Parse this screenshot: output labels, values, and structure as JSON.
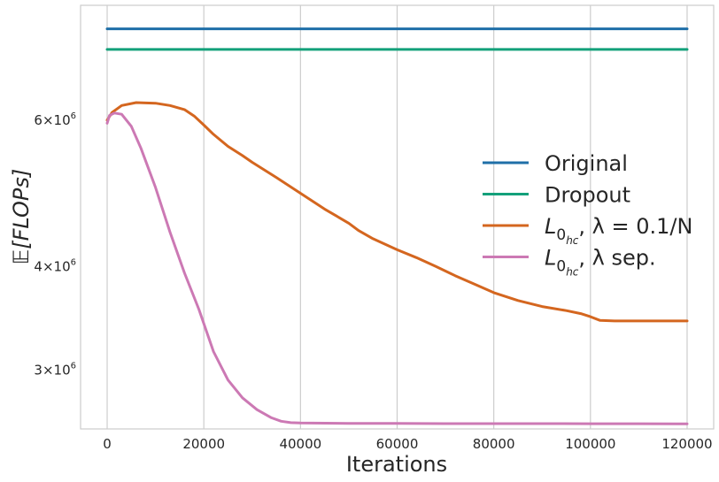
{
  "chart_data": {
    "type": "line",
    "title": "",
    "xlabel": "Iterations",
    "ylabel": "𝔼[FLOPs]",
    "y_scale": "log",
    "xlim": [
      -5500,
      125500
    ],
    "ylim": [
      2550000,
      8250000
    ],
    "grid": "vertical",
    "legend_position": "center-right",
    "x_ticks": [
      0,
      20000,
      40000,
      60000,
      80000,
      100000,
      120000
    ],
    "x_tick_labels": [
      "0",
      "20000",
      "40000",
      "60000",
      "80000",
      "100000",
      "120000"
    ],
    "y_ticks": [
      3000000,
      4000000,
      6000000
    ],
    "y_tick_labels": [
      {
        "mantissa": "3",
        "exponent": "6"
      },
      {
        "mantissa": "4",
        "exponent": "6"
      },
      {
        "mantissa": "6",
        "exponent": "6"
      }
    ],
    "series": [
      {
        "name": "Original",
        "legend_main": "Original",
        "color": "#1f6fa8",
        "x": [
          0,
          120000
        ],
        "y": [
          7730000,
          7730000
        ]
      },
      {
        "name": "Dropout",
        "legend_main": "Dropout",
        "color": "#13a07a",
        "x": [
          0,
          120000
        ],
        "y": [
          7300000,
          7300000
        ]
      },
      {
        "name": "L0hc, λ = 0.1/N",
        "legend_main": "L",
        "legend_sub0": "0",
        "legend_subsub": "hc",
        "legend_rest": ", λ = 0.1/N",
        "color": "#d4661f",
        "x": [
          0,
          1000,
          3000,
          6000,
          10000,
          13000,
          16000,
          18000,
          20000,
          22000,
          25000,
          28000,
          30000,
          35000,
          40000,
          45000,
          50000,
          52000,
          55000,
          60000,
          64000,
          68000,
          72000,
          76000,
          80000,
          85000,
          90000,
          95000,
          98000,
          100000,
          102000,
          105000,
          110000,
          120000
        ],
        "y": [
          6000000,
          6130000,
          6250000,
          6300000,
          6290000,
          6250000,
          6180000,
          6070000,
          5920000,
          5770000,
          5580000,
          5440000,
          5340000,
          5120000,
          4900000,
          4690000,
          4510000,
          4420000,
          4320000,
          4190000,
          4100000,
          4000000,
          3900000,
          3810000,
          3720000,
          3640000,
          3580000,
          3540000,
          3510000,
          3480000,
          3445000,
          3440000,
          3440000,
          3440000
        ]
      },
      {
        "name": "L0hc, λ sep.",
        "legend_main": "L",
        "legend_sub0": "0",
        "legend_subsub": "hc",
        "legend_rest": ", λ sep.",
        "color": "#cc79b4",
        "x": [
          0,
          500,
          1500,
          3000,
          5000,
          7000,
          10000,
          13000,
          16000,
          19000,
          22000,
          25000,
          28000,
          31000,
          34000,
          36000,
          38000,
          40000,
          50000,
          60000,
          70000,
          80000,
          90000,
          100000,
          110000,
          120000
        ],
        "y": [
          5950000,
          6080000,
          6120000,
          6100000,
          5900000,
          5550000,
          4980000,
          4400000,
          3930000,
          3550000,
          3160000,
          2920000,
          2780000,
          2690000,
          2630000,
          2605000,
          2595000,
          2592000,
          2590000,
          2589000,
          2588000,
          2588000,
          2588000,
          2587000,
          2587000,
          2586000
        ]
      }
    ]
  }
}
